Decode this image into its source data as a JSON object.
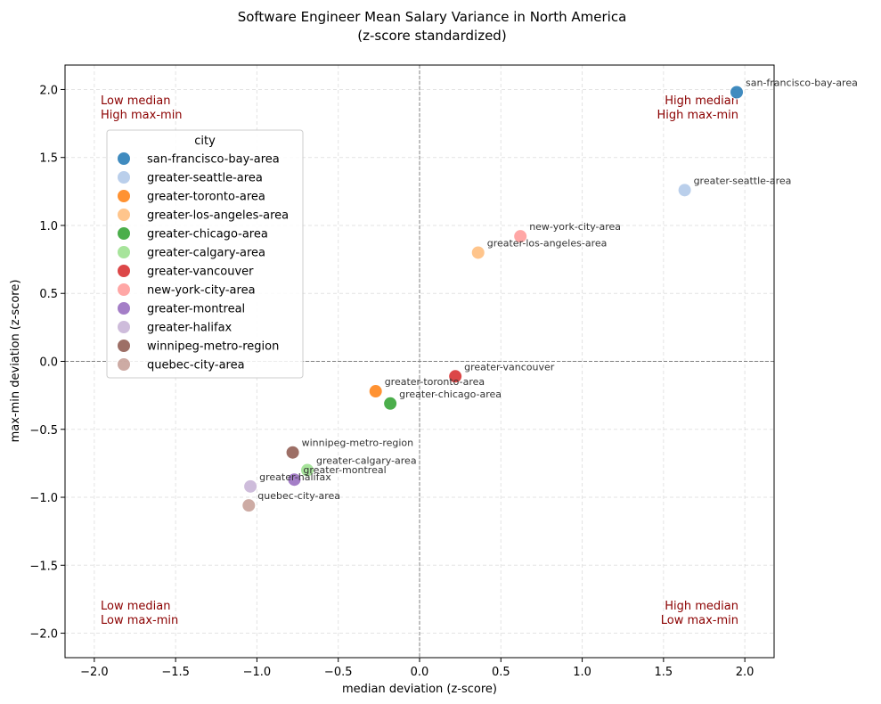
{
  "chart_data": {
    "type": "scatter",
    "title": "Software Engineer Mean Salary Variance in North America",
    "subtitle": "(z-score standardized)",
    "xlabel": "median deviation (z-score)",
    "ylabel": "max-min deviation (z-score)",
    "xlim": [
      -2.18,
      2.18
    ],
    "ylim": [
      -2.18,
      2.18
    ],
    "xticks": [
      -2.0,
      -1.5,
      -1.0,
      -0.5,
      0.0,
      0.5,
      1.0,
      1.5,
      2.0
    ],
    "yticks": [
      -2.0,
      -1.5,
      -1.0,
      -0.5,
      0.0,
      0.5,
      1.0,
      1.5,
      2.0
    ],
    "xtick_labels": [
      "−2.0",
      "−1.5",
      "−1.0",
      "−0.5",
      "0.0",
      "0.5",
      "1.0",
      "1.5",
      "2.0"
    ],
    "ytick_labels": [
      "−2.0",
      "−1.5",
      "−1.0",
      "−0.5",
      "0.0",
      "0.5",
      "1.0",
      "1.5",
      "2.0"
    ],
    "grid": true,
    "legend_title": "city",
    "legend_position": "upper-left",
    "quadrant_labels": {
      "top_left": [
        "Low median",
        "High max-min"
      ],
      "top_right": [
        "High median",
        "High max-min"
      ],
      "bottom_left": [
        "Low median",
        "Low max-min"
      ],
      "bottom_right": [
        "High median",
        "Low max-min"
      ]
    },
    "points": [
      {
        "name": "san-francisco-bay-area",
        "x": 1.95,
        "y": 1.98,
        "color": "#1f77b4"
      },
      {
        "name": "greater-seattle-area",
        "x": 1.63,
        "y": 1.26,
        "color": "#aec7e8"
      },
      {
        "name": "greater-toronto-area",
        "x": -0.27,
        "y": -0.22,
        "color": "#ff7f0e"
      },
      {
        "name": "greater-los-angeles-area",
        "x": 0.36,
        "y": 0.8,
        "color": "#ffbb78"
      },
      {
        "name": "greater-chicago-area",
        "x": -0.18,
        "y": -0.31,
        "color": "#2ca02c"
      },
      {
        "name": "greater-calgary-area",
        "x": -0.69,
        "y": -0.8,
        "color": "#98df8a"
      },
      {
        "name": "greater-vancouver",
        "x": 0.22,
        "y": -0.11,
        "color": "#d62728"
      },
      {
        "name": "new-york-city-area",
        "x": 0.62,
        "y": 0.92,
        "color": "#ff9896"
      },
      {
        "name": "greater-montreal",
        "x": -0.77,
        "y": -0.87,
        "color": "#9467bd"
      },
      {
        "name": "greater-halifax",
        "x": -1.04,
        "y": -0.92,
        "color": "#c5b0d5"
      },
      {
        "name": "winnipeg-metro-region",
        "x": -0.78,
        "y": -0.67,
        "color": "#8c564b"
      },
      {
        "name": "quebec-city-area",
        "x": -1.05,
        "y": -1.06,
        "color": "#c49c94"
      }
    ]
  }
}
